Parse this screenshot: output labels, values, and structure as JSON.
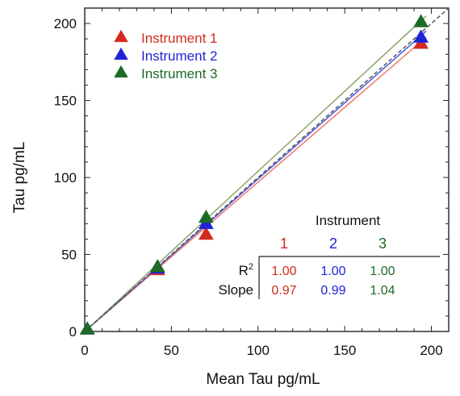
{
  "chart_data": {
    "type": "scatter",
    "xlabel": "Mean Tau pg/mL",
    "ylabel": "Tau pg/mL",
    "xlim": [
      0,
      210
    ],
    "ylim": [
      0,
      210
    ],
    "x_ticks": [
      0,
      50,
      100,
      150,
      200
    ],
    "y_ticks": [
      0,
      50,
      100,
      150,
      200
    ],
    "x_tick_labels": [
      "0",
      "50",
      "100",
      "150",
      "200"
    ],
    "y_tick_labels": [
      "0",
      "50",
      "100",
      "150",
      "200"
    ],
    "identity_line": true,
    "grid": false,
    "legend_position": "top-left",
    "series": [
      {
        "name": "Instrument 1",
        "color": "#d42a1e",
        "line_color": "#f0786a",
        "marker": "triangle",
        "points": [
          [
            1.5,
            1.5
          ],
          [
            42,
            40
          ],
          [
            70,
            63
          ],
          [
            194,
            187
          ]
        ],
        "slope": 0.97,
        "r2": 1.0
      },
      {
        "name": "Instrument 2",
        "color": "#1f23d8",
        "line_color": "#4a5adf",
        "marker": "triangle",
        "points": [
          [
            1.5,
            1.5
          ],
          [
            42,
            41
          ],
          [
            70,
            70
          ],
          [
            194,
            191
          ]
        ],
        "slope": 0.99,
        "r2": 1.0
      },
      {
        "name": "Instrument 3",
        "color": "#1c6b26",
        "line_color": "#8ea46a",
        "marker": "triangle",
        "points": [
          [
            1.5,
            1.5
          ],
          [
            42,
            42
          ],
          [
            70,
            74
          ],
          [
            194,
            201
          ]
        ],
        "slope": 1.04,
        "r2": 1.0
      }
    ],
    "stats_table": {
      "title": "Instrument",
      "columns": [
        "1",
        "2",
        "3"
      ],
      "rows": [
        {
          "label": "R",
          "superscript": "2",
          "values": [
            "1.00",
            "1.00",
            "1.00"
          ]
        },
        {
          "label": "Slope",
          "superscript": "",
          "values": [
            "0.97",
            "0.99",
            "1.04"
          ]
        }
      ]
    }
  }
}
